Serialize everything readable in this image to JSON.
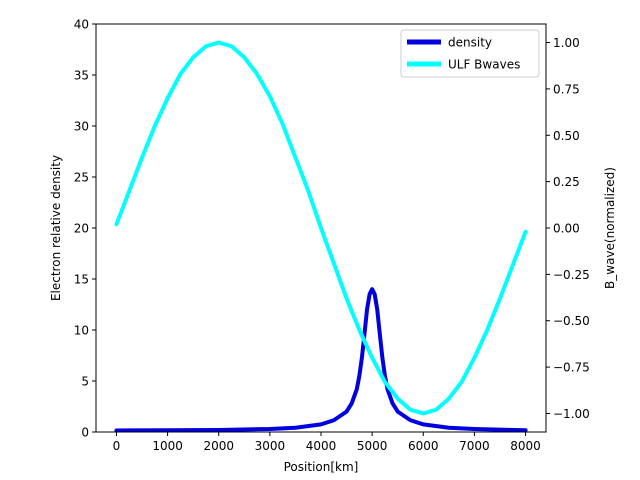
{
  "chart_data": {
    "type": "line",
    "title": "",
    "xlabel": "Position[km]",
    "ylabel_left": "Electron relative density",
    "ylabel_right": "B_wave(normalized)",
    "xlim": [
      -400,
      8400
    ],
    "ylim_left": [
      0,
      40
    ],
    "ylim_right": [
      -1.1,
      1.1
    ],
    "x_ticks": [
      0,
      1000,
      2000,
      3000,
      4000,
      5000,
      6000,
      7000,
      8000
    ],
    "y_left_ticks": [
      0,
      5,
      10,
      15,
      20,
      25,
      30,
      35,
      40
    ],
    "y_right_ticks": [
      -1.0,
      -0.75,
      -0.5,
      -0.25,
      0.0,
      0.25,
      0.5,
      0.75,
      1.0
    ],
    "x_tick_labels": [
      "0",
      "1000",
      "2000",
      "3000",
      "4000",
      "5000",
      "6000",
      "7000",
      "8000"
    ],
    "y_left_tick_labels": [
      "0",
      "5",
      "10",
      "15",
      "20",
      "25",
      "30",
      "35",
      "40"
    ],
    "y_right_tick_labels": [
      "−1.00",
      "−0.75",
      "−0.50",
      "−0.25",
      "0.00",
      "0.25",
      "0.50",
      "0.75",
      "1.00"
    ],
    "legend_position": "top-right",
    "grid": false,
    "series": [
      {
        "name": "density",
        "axis": "left",
        "color": "#0000e0",
        "x": [
          0,
          1000,
          2000,
          3000,
          3500,
          4000,
          4250,
          4500,
          4600,
          4700,
          4750,
          4800,
          4850,
          4900,
          4950,
          5000,
          5050,
          5100,
          5150,
          5200,
          5250,
          5300,
          5400,
          5500,
          5750,
          6000,
          6500,
          7000,
          8000
        ],
        "values": [
          0.15,
          0.17,
          0.2,
          0.3,
          0.42,
          0.75,
          1.15,
          2.0,
          2.8,
          4.2,
          5.5,
          7.3,
          9.6,
          12.0,
          13.5,
          14.0,
          13.5,
          12.0,
          9.6,
          7.3,
          5.5,
          4.2,
          2.8,
          2.0,
          1.15,
          0.75,
          0.42,
          0.3,
          0.17
        ]
      },
      {
        "name": "ULF Bwaves",
        "axis": "right",
        "color": "#00ffff",
        "x": [
          0,
          250,
          500,
          750,
          1000,
          1250,
          1500,
          1750,
          2000,
          2250,
          2500,
          2750,
          3000,
          3250,
          3500,
          3750,
          4000,
          4250,
          4500,
          4750,
          5000,
          5250,
          5500,
          5750,
          6000,
          6250,
          6500,
          6750,
          7000,
          7250,
          7500,
          7750,
          8000
        ],
        "values": [
          0.02,
          0.2,
          0.38,
          0.55,
          0.7,
          0.83,
          0.92,
          0.98,
          1.0,
          0.98,
          0.92,
          0.83,
          0.71,
          0.56,
          0.38,
          0.2,
          0.0,
          -0.19,
          -0.38,
          -0.55,
          -0.7,
          -0.83,
          -0.92,
          -0.98,
          -1.0,
          -0.98,
          -0.92,
          -0.83,
          -0.7,
          -0.55,
          -0.38,
          -0.2,
          -0.02
        ]
      }
    ]
  }
}
